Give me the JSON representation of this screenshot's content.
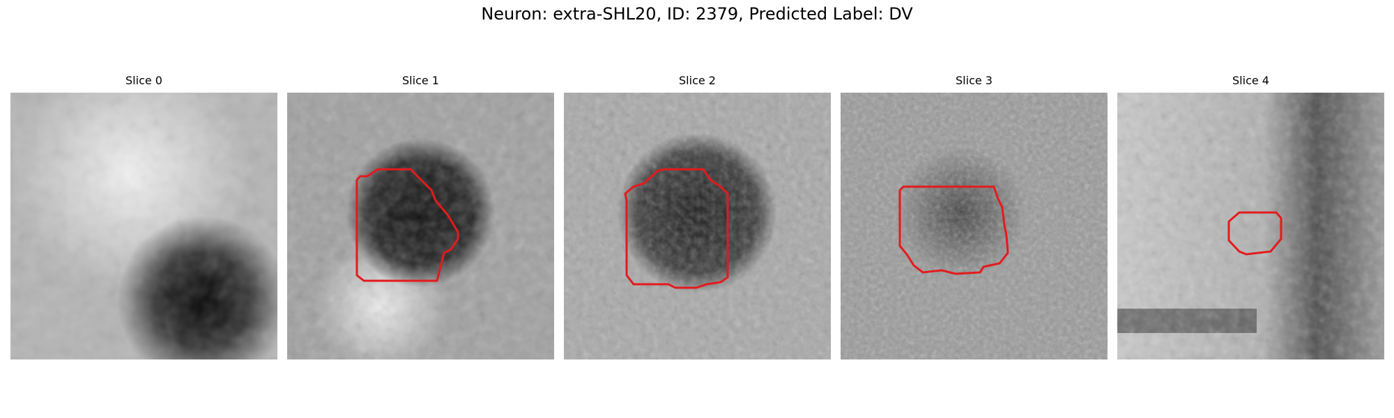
{
  "figure": {
    "title": "Neuron: extra-SHL20, ID: 2379, Predicted Label: DV"
  },
  "panels": [
    {
      "title": "Slice 0",
      "has_contour": false
    },
    {
      "title": "Slice 1",
      "has_contour": true
    },
    {
      "title": "Slice 2",
      "has_contour": true
    },
    {
      "title": "Slice 3",
      "has_contour": true
    },
    {
      "title": "Slice 4",
      "has_contour": true
    }
  ],
  "colors": {
    "contour": "#e41a1c",
    "background": "#ffffff"
  }
}
